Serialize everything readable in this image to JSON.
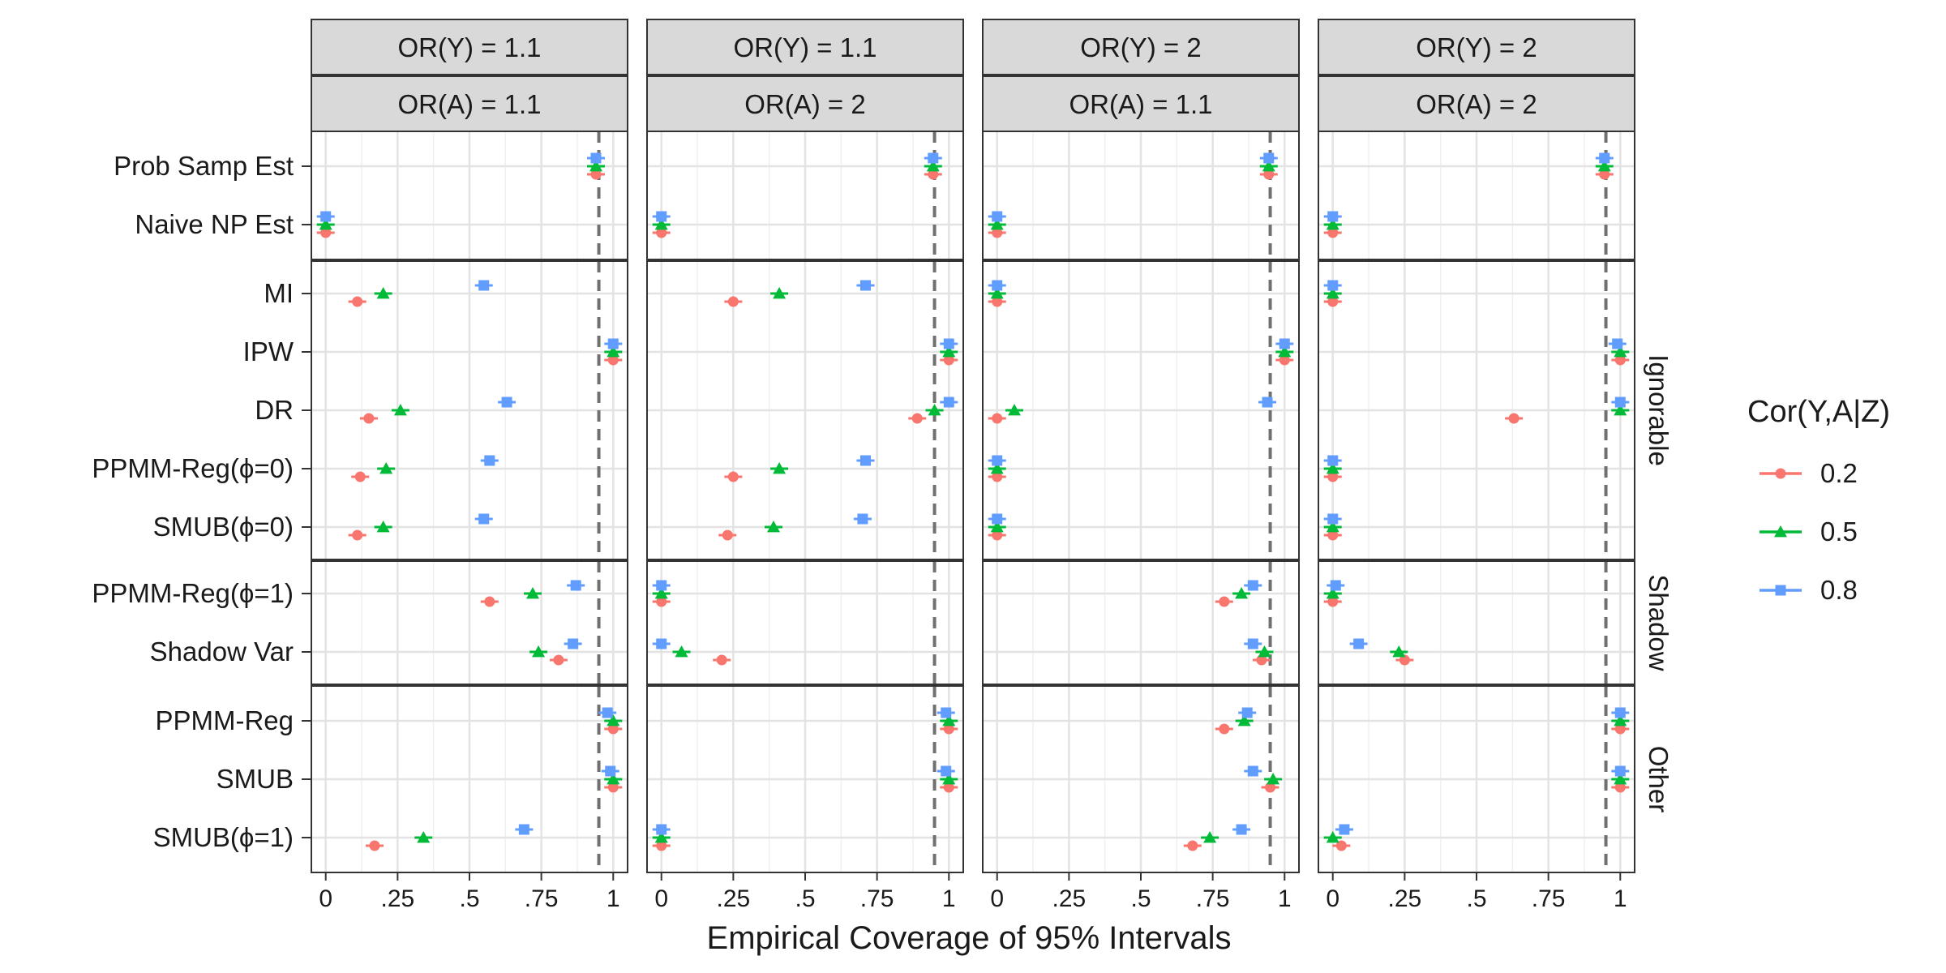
{
  "chart_data": {
    "type": "scatter",
    "xlabel": "Empirical Coverage of 95% Intervals",
    "xlim": [
      -0.05,
      1.05
    ],
    "x_ticks": [
      0,
      0.25,
      0.5,
      0.75,
      1
    ],
    "x_tick_labels": [
      "0",
      ".25",
      ".5",
      ".75",
      "1"
    ],
    "reference_line": 0.95,
    "grid": true,
    "legend": {
      "title": "Cor(Y,A|Z)",
      "position": "right",
      "entries": [
        {
          "label": "0.2",
          "color": "#F8766D",
          "shape": "circle"
        },
        {
          "label": "0.5",
          "color": "#00BA38",
          "shape": "triangle"
        },
        {
          "label": "0.8",
          "color": "#619CFF",
          "shape": "square"
        }
      ]
    },
    "column_facets": [
      {
        "top": "OR(Y) = 1.1",
        "bottom": "OR(A) = 1.1"
      },
      {
        "top": "OR(Y) = 1.1",
        "bottom": "OR(A) = 2"
      },
      {
        "top": "OR(Y) = 2",
        "bottom": "OR(A) = 1.1"
      },
      {
        "top": "OR(Y) = 2",
        "bottom": "OR(A) = 2"
      }
    ],
    "row_facets": [
      {
        "label": "",
        "methods": [
          "Prob Samp Est",
          "Naive NP Est"
        ]
      },
      {
        "label": "Ignorable",
        "methods": [
          "MI",
          "IPW",
          "DR",
          "PPMM-Reg(ϕ=0)",
          "SMUB(ϕ=0)"
        ]
      },
      {
        "label": "Shadow",
        "methods": [
          "PPMM-Reg(ϕ=1)",
          "Shadow Var"
        ]
      },
      {
        "label": "Other",
        "methods": [
          "PPMM-Reg",
          "SMUB",
          "SMUB(ϕ=1)"
        ]
      }
    ],
    "series_names": [
      "0.2",
      "0.5",
      "0.8"
    ],
    "coverage": {
      "Prob Samp Est": [
        [
          0.94,
          0.94,
          0.94
        ],
        [
          0.945,
          0.945,
          0.945
        ],
        [
          0.945,
          0.945,
          0.945
        ],
        [
          0.945,
          0.945,
          0.945
        ]
      ],
      "Naive NP Est": [
        [
          0,
          0,
          0
        ],
        [
          0,
          0,
          0
        ],
        [
          0,
          0,
          0
        ],
        [
          0,
          0,
          0
        ]
      ],
      "MI": [
        [
          0.11,
          0.2,
          0.55
        ],
        [
          0.25,
          0.41,
          0.71
        ],
        [
          0,
          0,
          0
        ],
        [
          0,
          0,
          0
        ]
      ],
      "IPW": [
        [
          1,
          1,
          1
        ],
        [
          1,
          1,
          1
        ],
        [
          1,
          1,
          1
        ],
        [
          1,
          1,
          0.99
        ]
      ],
      "DR": [
        [
          0.15,
          0.26,
          0.63
        ],
        [
          0.89,
          0.95,
          1
        ],
        [
          0,
          0.06,
          0.94
        ],
        [
          0.63,
          1,
          1
        ]
      ],
      "PPMM-Reg(ϕ=0)": [
        [
          0.12,
          0.21,
          0.57
        ],
        [
          0.25,
          0.41,
          0.71
        ],
        [
          0,
          0,
          0
        ],
        [
          0,
          0,
          0
        ]
      ],
      "SMUB(ϕ=0)": [
        [
          0.11,
          0.2,
          0.55
        ],
        [
          0.23,
          0.39,
          0.7
        ],
        [
          0,
          0,
          0
        ],
        [
          0,
          0,
          0
        ]
      ],
      "PPMM-Reg(ϕ=1)": [
        [
          0.57,
          0.72,
          0.87
        ],
        [
          0,
          0,
          0
        ],
        [
          0.79,
          0.85,
          0.89
        ],
        [
          0,
          0,
          0.01
        ]
      ],
      "Shadow Var": [
        [
          0.81,
          0.74,
          0.86
        ],
        [
          0.21,
          0.07,
          0
        ],
        [
          0.92,
          0.93,
          0.89
        ],
        [
          0.25,
          0.23,
          0.09
        ]
      ],
      "PPMM-Reg": [
        [
          1,
          1,
          0.98
        ],
        [
          1,
          1,
          0.99
        ],
        [
          0.79,
          0.86,
          0.87
        ],
        [
          1,
          1,
          1
        ]
      ],
      "SMUB": [
        [
          1,
          1,
          0.99
        ],
        [
          1,
          1,
          0.99
        ],
        [
          0.95,
          0.96,
          0.89
        ],
        [
          1,
          1,
          1
        ]
      ],
      "SMUB(ϕ=1)": [
        [
          0.17,
          0.34,
          0.69
        ],
        [
          0,
          0,
          0
        ],
        [
          0.68,
          0.74,
          0.85
        ],
        [
          0.03,
          0,
          0.04
        ]
      ]
    }
  }
}
